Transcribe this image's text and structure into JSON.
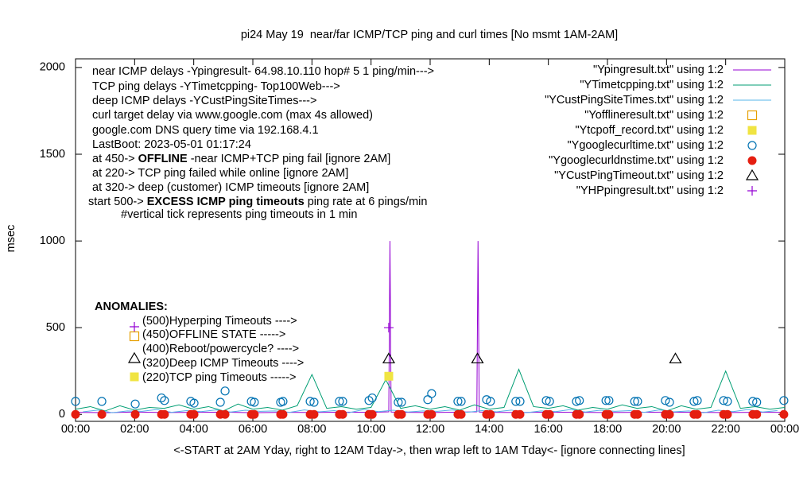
{
  "chart_data": {
    "type": "line",
    "title": "pi24 May 19  near/far ICMP/TCP ping and curl times [No msmt 1AM-2AM]",
    "xlabel": "<-START at 2AM Yday, right to 12AM Tday->, then wrap left to 1AM Tday<- [ignore connecting lines]",
    "ylabel": "msec",
    "xlim": [
      0,
      24
    ],
    "ylim": [
      -40,
      2050
    ],
    "xticks": [
      {
        "value": 0,
        "label": "00:00"
      },
      {
        "value": 2,
        "label": "02:00"
      },
      {
        "value": 4,
        "label": "04:00"
      },
      {
        "value": 6,
        "label": "06:00"
      },
      {
        "value": 8,
        "label": "08:00"
      },
      {
        "value": 10,
        "label": "10:00"
      },
      {
        "value": 12,
        "label": "12:00"
      },
      {
        "value": 14,
        "label": "14:00"
      },
      {
        "value": 16,
        "label": "16:00"
      },
      {
        "value": 18,
        "label": "18:00"
      },
      {
        "value": 20,
        "label": "20:00"
      },
      {
        "value": 22,
        "label": "22:00"
      },
      {
        "value": 24,
        "label": "00:00"
      }
    ],
    "yticks": [
      0,
      500,
      1000,
      1500,
      2000
    ],
    "grid": false,
    "legend": "top-right",
    "annotations": [
      [
        {
          "text": "near ICMP delays -Ypingresult- 64.98.10.110 hop# 5 1 ping/min--->",
          "bold": false
        }
      ],
      [
        {
          "text": "TCP ping delays -YTimetcpping- Top100Web--->",
          "bold": false
        }
      ],
      [
        {
          "text": "deep ICMP delays -YCustPingSiteTimes--->",
          "bold": false
        }
      ],
      [
        {
          "text": "curl target delay via www.google.com (max 4s allowed)",
          "bold": false
        }
      ],
      [
        {
          "text": "google.com DNS query time via 192.168.4.1",
          "bold": false
        }
      ],
      [
        {
          "text": "LastBoot: 2023-05-01 01:17:24",
          "bold": false
        }
      ],
      [
        {
          "text": "at 450-> ",
          "bold": false
        },
        {
          "text": "OFFLINE",
          "bold": true
        },
        {
          "text": " -near ICMP+TCP ping fail [ignore 2AM]",
          "bold": false
        }
      ],
      [
        {
          "text": "at 220-> TCP ping failed while online [ignore 2AM]",
          "bold": false
        }
      ],
      [
        {
          "text": "at 320-> deep (customer) ICMP timeouts [ignore 2AM]",
          "bold": false
        }
      ],
      [
        {
          "text": "start 500-> ",
          "bold": false
        },
        {
          "text": "EXCESS ICMP ping timeouts",
          "bold": true
        },
        {
          "text": " ping rate at 6 pings/min",
          "bold": false
        }
      ],
      [
        {
          "text": "#vertical tick represents ping timeouts in 1 min",
          "bold": false
        }
      ]
    ],
    "anomalies_title": "ANOMALIES:",
    "anomalies": [
      "(500)Hyperping Timeouts ---->",
      "(450)OFFLINE STATE ----->",
      "(400)Reboot/powercycle? ---->",
      "(320)Deep ICMP Timeouts ---->",
      "(220)TCP ping Timeouts ----->"
    ],
    "series": [
      {
        "name": "\"Ypingresult.txt\" using 1:2",
        "color": "#9400d3",
        "style": "line",
        "x": [
          0,
          1,
          2,
          3,
          4,
          5,
          6,
          7,
          8,
          9,
          10,
          10.6,
          10.64,
          10.68,
          11,
          12,
          13,
          13.58,
          13.62,
          13.66,
          14,
          15,
          16,
          17,
          18,
          19,
          20,
          21,
          22,
          23,
          24
        ],
        "values": [
          12,
          10,
          14,
          11,
          12,
          13,
          10,
          12,
          11,
          13,
          12,
          15,
          1000,
          14,
          12,
          11,
          13,
          15,
          1000,
          14,
          12,
          11,
          13,
          12,
          11,
          12,
          13,
          12,
          11,
          12,
          12
        ]
      },
      {
        "name": "\"YTimetcpping.txt\" using 1:2",
        "color": "#009e73",
        "style": "line",
        "x": [
          0,
          0.5,
          1,
          1.5,
          2,
          2.5,
          3,
          3.5,
          4,
          4.5,
          5,
          5.5,
          6,
          6.5,
          7,
          7.5,
          8,
          8.5,
          9,
          9.5,
          10,
          10.5,
          11,
          11.5,
          12,
          12.5,
          13,
          13.5,
          14,
          14.5,
          15,
          15.5,
          16,
          16.5,
          17,
          17.5,
          18,
          18.5,
          19,
          19.5,
          20,
          20.5,
          21,
          21.5,
          22,
          22.5,
          23,
          23.5,
          24
        ],
        "values": [
          30,
          45,
          20,
          50,
          25,
          40,
          35,
          55,
          30,
          45,
          20,
          60,
          30,
          40,
          25,
          50,
          230,
          35,
          45,
          30,
          40,
          200,
          35,
          50,
          30,
          45,
          25,
          55,
          30,
          40,
          260,
          45,
          35,
          50,
          25,
          40,
          30,
          55,
          35,
          45,
          20,
          50,
          30,
          40,
          250,
          35,
          45,
          30,
          40
        ]
      },
      {
        "name": "\"YCustPingSiteTimes.txt\" using 1:2",
        "color": "#56b4e9",
        "style": "line",
        "x": [
          0.25,
          0.75,
          1.25,
          1.75,
          2.25,
          2.75,
          3.25,
          3.75,
          4.25,
          4.75,
          5.25,
          5.75,
          6.25,
          6.75,
          7.25,
          7.75,
          8.25,
          8.75,
          9.25,
          9.75,
          10.25,
          10.75,
          11.25,
          11.75,
          12.25,
          12.75,
          13.25,
          13.75,
          14.25,
          14.75,
          15.25,
          15.75,
          16.25,
          16.75,
          17.25,
          17.75,
          18.25,
          18.75,
          19.25,
          19.75,
          20.25,
          20.75,
          21.25,
          21.75,
          22.25,
          22.75,
          23.25,
          23.75
        ],
        "values": [
          15,
          25,
          10,
          20,
          18,
          28,
          12,
          22,
          16,
          26,
          14,
          24,
          18,
          20,
          12,
          26,
          15,
          22,
          10,
          28,
          16,
          24,
          14,
          20,
          18,
          26,
          12,
          22,
          15,
          25,
          10,
          20,
          16,
          28,
          14,
          24,
          18,
          22,
          12,
          26,
          15,
          20,
          10,
          24,
          16,
          28,
          14,
          22
        ]
      },
      {
        "name": "\"Yofflineresult.txt\" using 1:2",
        "color": "#e69f00",
        "style": "square-open",
        "x": [],
        "values": []
      },
      {
        "name": "\"Ytcpoff_record.txt\" using 1:2",
        "color": "#f0e442",
        "style": "square-filled",
        "x": [
          10.6
        ],
        "values": [
          220
        ]
      },
      {
        "name": "\"Ygooglecurltime.txt\" using 1:2",
        "color": "#0072b2",
        "style": "circle-open",
        "x": [
          0,
          0.89,
          2.02,
          2.91,
          3.01,
          3.9,
          4.01,
          4.9,
          5.06,
          5.95,
          6.05,
          6.94,
          7.02,
          7.94,
          8.07,
          8.93,
          9.04,
          9.93,
          10.04,
          10.92,
          11.03,
          11.92,
          12.05,
          12.94,
          13.05,
          13.91,
          14.04,
          14.9,
          15.04,
          15.93,
          16.04,
          16.95,
          17.05,
          17.95,
          18.05,
          18.92,
          19.02,
          19.96,
          20.1,
          20.93,
          21.04,
          21.93,
          22.06,
          22.92,
          23.05,
          23.97
        ],
        "values": [
          75,
          75,
          60,
          95,
          80,
          75,
          65,
          70,
          135,
          75,
          70,
          70,
          75,
          75,
          70,
          75,
          75,
          80,
          95,
          70,
          70,
          85,
          120,
          75,
          75,
          85,
          75,
          75,
          75,
          80,
          75,
          75,
          80,
          80,
          80,
          75,
          75,
          80,
          70,
          75,
          80,
          80,
          75,
          75,
          70,
          80
        ]
      },
      {
        "name": "\"Ygooglecurldnstime.txt\" using 1:2",
        "color": "#e51e10",
        "style": "circle-filled",
        "x": [
          0,
          0.89,
          2.02,
          2.91,
          3.01,
          3.9,
          4.01,
          4.9,
          5.06,
          5.95,
          6.05,
          6.94,
          7.02,
          7.94,
          8.07,
          8.93,
          9.04,
          9.93,
          10.04,
          10.92,
          11.03,
          11.92,
          12.05,
          12.94,
          13.05,
          13.91,
          14.04,
          14.9,
          15.04,
          15.93,
          16.04,
          16.95,
          17.05,
          17.95,
          18.05,
          18.92,
          19.02,
          19.96,
          20.1,
          20.93,
          21.04,
          21.93,
          22.06,
          22.92,
          23.05,
          23.97
        ],
        "values": [
          0,
          0,
          0,
          0,
          0,
          0,
          0,
          0,
          0,
          0,
          0,
          0,
          0,
          0,
          0,
          0,
          0,
          0,
          0,
          0,
          0,
          0,
          0,
          0,
          0,
          0,
          0,
          0,
          0,
          0,
          0,
          0,
          0,
          0,
          0,
          0,
          0,
          0,
          0,
          0,
          0,
          0,
          0,
          0,
          0,
          0
        ]
      },
      {
        "name": "\"YCustPingTimeout.txt\" using 1:2",
        "color": "#000000",
        "style": "triangle-open",
        "x": [
          10.6,
          13.6,
          20.3
        ],
        "values": [
          320,
          320,
          320
        ]
      },
      {
        "name": "\"YHPpingresult.txt\" using 1:2",
        "color": "#9400d3",
        "style": "plus",
        "x": [
          10.6
        ],
        "values": [
          500
        ]
      }
    ]
  }
}
